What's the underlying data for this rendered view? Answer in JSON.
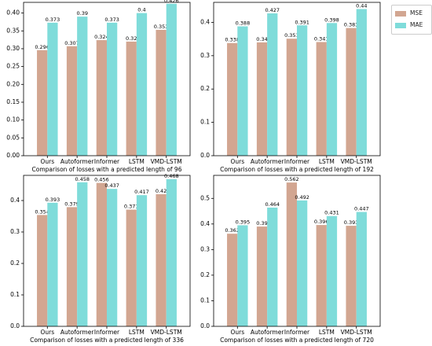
{
  "colors": {
    "mse": "#D2A691",
    "mae": "#7FDCDA"
  },
  "legend": {
    "mse_label": "MSE",
    "mae_label": "MAE",
    "placement": "upper right outside"
  },
  "chart_data": [
    {
      "type": "bar",
      "title": "Comparison of losses with a predicted length of 96",
      "categories": [
        "Ours",
        "Autoformer",
        "Informer",
        "LSTM",
        "VMD-LSTM"
      ],
      "series": [
        {
          "name": "MSE",
          "values": [
            0.296,
            0.307,
            0.324,
            0.32,
            0.353
          ]
        },
        {
          "name": "MAE",
          "values": [
            0.373,
            0.39,
            0.373,
            0.4,
            0.426
          ]
        }
      ],
      "ylim": [
        0,
        0.43
      ],
      "yticks": [
        "0.00",
        "0.05",
        "0.10",
        "0.15",
        "0.20",
        "0.25",
        "0.30",
        "0.35",
        "0.40"
      ],
      "data_labels": true,
      "grid": false
    },
    {
      "type": "bar",
      "title": "Comparison of losses with a predicted length of 192",
      "categories": [
        "Ours",
        "Autoformer",
        "Informer",
        "LSTM",
        "VMD-LSTM"
      ],
      "series": [
        {
          "name": "MSE",
          "values": [
            0.338,
            0.34,
            0.351,
            0.341,
            0.383
          ]
        },
        {
          "name": "MAE",
          "values": [
            0.388,
            0.427,
            0.391,
            0.398,
            0.44
          ]
        }
      ],
      "ylim": [
        0,
        0.46
      ],
      "yticks": [
        "0.0",
        "0.1",
        "0.2",
        "0.3",
        "0.4"
      ],
      "data_labels": true,
      "grid": false
    },
    {
      "type": "bar",
      "title": "Comparison of losses with a predicted length of 336",
      "categories": [
        "Ours",
        "Autoformer",
        "Informer",
        "LSTM",
        "VMD-LSTM"
      ],
      "series": [
        {
          "name": "MSE",
          "values": [
            0.354,
            0.379,
            0.456,
            0.371,
            0.42
          ]
        },
        {
          "name": "MAE",
          "values": [
            0.393,
            0.458,
            0.437,
            0.417,
            0.468
          ]
        }
      ],
      "ylim": [
        0,
        0.48
      ],
      "yticks": [
        "0.0",
        "0.1",
        "0.2",
        "0.3",
        "0.4"
      ],
      "data_labels": true,
      "grid": false
    },
    {
      "type": "bar",
      "title": "Comparison of losses with a predicted length of 720",
      "categories": [
        "Ours",
        "Autoformer",
        "Informer",
        "LSTM",
        "VMD-LSTM"
      ],
      "series": [
        {
          "name": "MSE",
          "values": [
            0.362,
            0.39,
            0.562,
            0.396,
            0.393
          ]
        },
        {
          "name": "MAE",
          "values": [
            0.395,
            0.464,
            0.492,
            0.431,
            0.447
          ]
        }
      ],
      "ylim": [
        0,
        0.59
      ],
      "yticks": [
        "0.0",
        "0.1",
        "0.2",
        "0.3",
        "0.4",
        "0.5"
      ],
      "data_labels": true,
      "grid": false
    }
  ]
}
